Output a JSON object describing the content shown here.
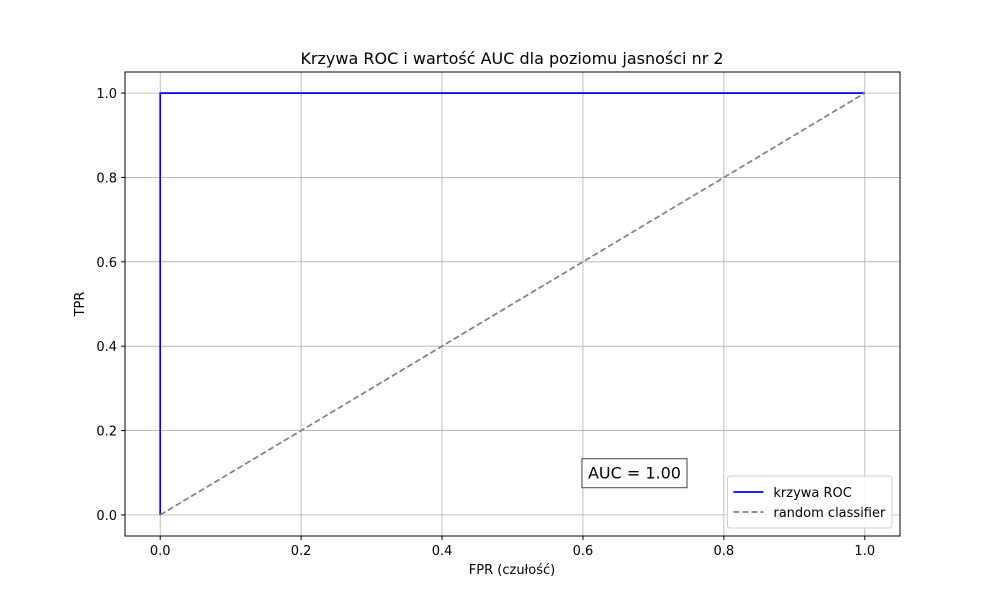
{
  "chart_data": {
    "type": "line",
    "title": "Krzywa ROC i wartość AUC dla poziomu jasności nr 2",
    "xlabel": "FPR (czułość)",
    "ylabel": "TPR",
    "xlim": [
      -0.05,
      1.05
    ],
    "ylim": [
      -0.05,
      1.05
    ],
    "x_ticks": [
      0.0,
      0.2,
      0.4,
      0.6,
      0.8,
      1.0
    ],
    "y_ticks": [
      0.0,
      0.2,
      0.4,
      0.6,
      0.8,
      1.0
    ],
    "x_tick_labels": [
      "0.0",
      "0.2",
      "0.4",
      "0.6",
      "0.8",
      "1.0"
    ],
    "y_tick_labels": [
      "0.0",
      "0.2",
      "0.4",
      "0.6",
      "0.8",
      "1.0"
    ],
    "grid": true,
    "legend_position": "lower-right",
    "series": [
      {
        "name": "krzywa ROC",
        "color": "#0000ff",
        "style": "solid",
        "x": [
          0.0,
          0.0,
          1.0
        ],
        "y": [
          0.0,
          1.0,
          1.0
        ]
      },
      {
        "name": "random classifier",
        "color": "#808080",
        "style": "dashed",
        "x": [
          0.0,
          1.0
        ],
        "y": [
          0.0,
          1.0
        ]
      }
    ],
    "annotations": [
      {
        "text": "AUC = 1.00",
        "x": 0.6,
        "y": 0.1
      }
    ]
  }
}
